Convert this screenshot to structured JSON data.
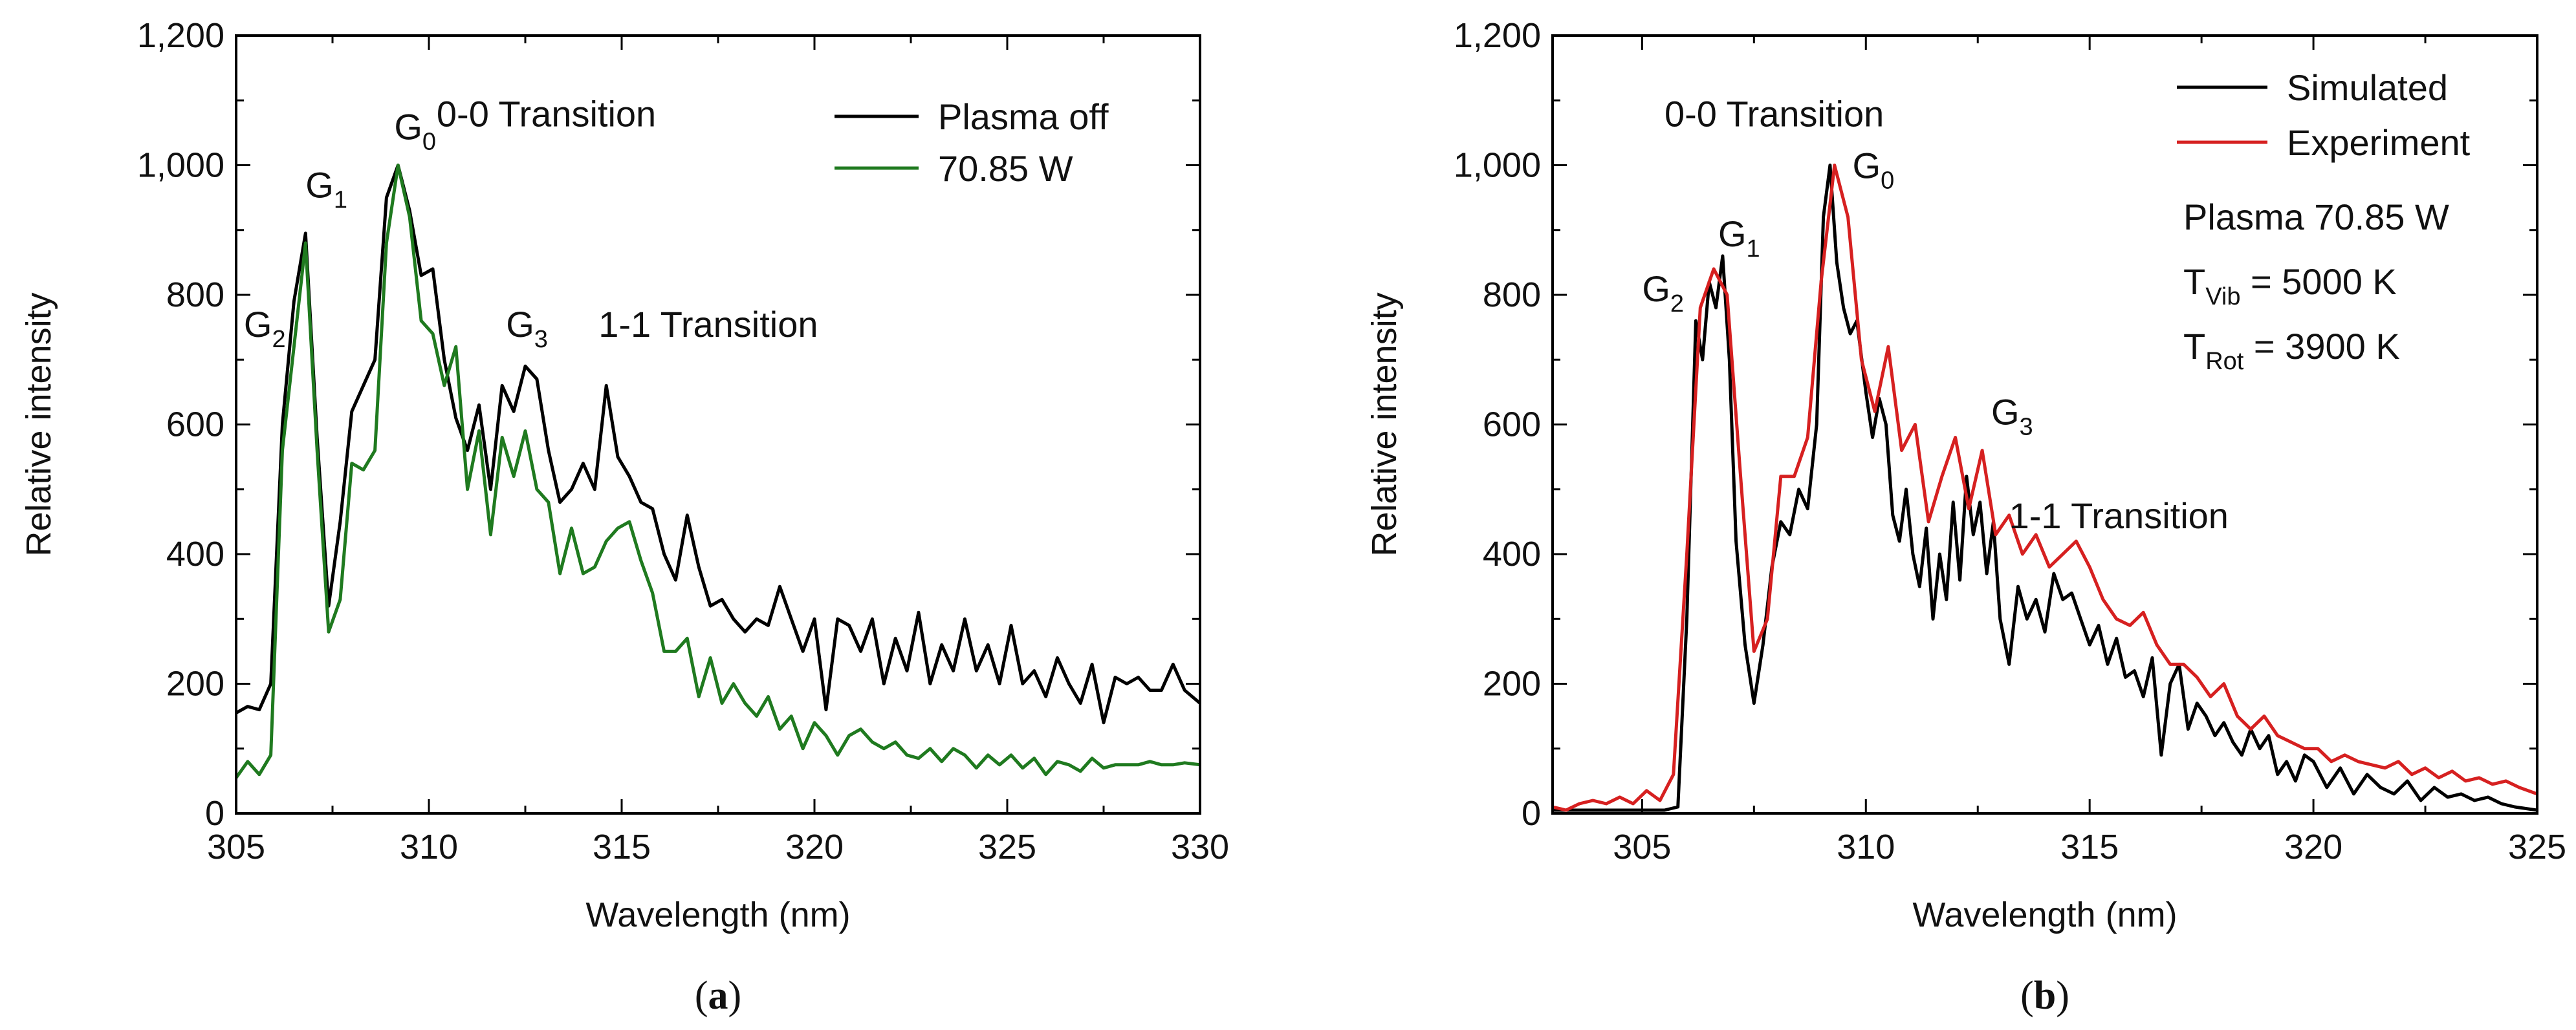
{
  "chart_data": [
    {
      "type": "line",
      "panel_label_open": "(",
      "panel_label_letter": "a",
      "panel_label_close": ")",
      "xlabel": "Wavelength (nm)",
      "ylabel": "Relative intensity",
      "xlim": [
        305,
        330
      ],
      "ylim": [
        0,
        1200
      ],
      "xticks": [
        305,
        310,
        315,
        320,
        325,
        330
      ],
      "yticks": [
        0,
        200,
        400,
        600,
        800,
        1000,
        1200
      ],
      "ytick_labels": [
        "0",
        "200",
        "400",
        "600",
        "800",
        "1,000",
        "1,200"
      ],
      "legend": "top-right",
      "series": [
        {
          "name": "Plasma off",
          "color": "#000000",
          "x": [
            305,
            305.3,
            305.6,
            305.9,
            306.2,
            306.5,
            306.8,
            307.1,
            307.4,
            307.7,
            308.0,
            308.3,
            308.6,
            308.9,
            309.2,
            309.5,
            309.8,
            310.1,
            310.4,
            310.7,
            311.0,
            311.3,
            311.6,
            311.9,
            312.2,
            312.5,
            312.8,
            313.1,
            313.4,
            313.7,
            314.0,
            314.3,
            314.6,
            314.9,
            315.2,
            315.5,
            315.8,
            316.1,
            316.4,
            316.7,
            317.0,
            317.3,
            317.6,
            317.9,
            318.2,
            318.5,
            318.8,
            319.1,
            319.4,
            319.7,
            320.0,
            320.3,
            320.6,
            320.9,
            321.2,
            321.5,
            321.8,
            322.1,
            322.4,
            322.7,
            323.0,
            323.3,
            323.6,
            323.9,
            324.2,
            324.5,
            324.8,
            325.1,
            325.4,
            325.7,
            326.0,
            326.3,
            326.6,
            326.9,
            327.2,
            327.5,
            327.8,
            328.1,
            328.4,
            328.7,
            329.0,
            329.3,
            329.6,
            330.0
          ],
          "y": [
            155,
            165,
            160,
            200,
            600,
            790,
            895,
            580,
            320,
            450,
            620,
            660,
            700,
            950,
            1000,
            930,
            830,
            840,
            700,
            610,
            560,
            630,
            500,
            660,
            620,
            690,
            670,
            560,
            480,
            500,
            540,
            500,
            660,
            550,
            520,
            480,
            470,
            400,
            360,
            460,
            380,
            320,
            330,
            300,
            280,
            300,
            290,
            350,
            300,
            250,
            300,
            160,
            300,
            290,
            250,
            300,
            200,
            270,
            220,
            310,
            200,
            260,
            220,
            300,
            220,
            260,
            200,
            290,
            200,
            220,
            180,
            240,
            200,
            170,
            230,
            140,
            210,
            200,
            210,
            190,
            190,
            230,
            190,
            170
          ]
        },
        {
          "name": "70.85 W",
          "color": "#1f7a1f",
          "x": [
            305,
            305.3,
            305.6,
            305.9,
            306.2,
            306.5,
            306.8,
            307.1,
            307.4,
            307.7,
            308.0,
            308.3,
            308.6,
            308.9,
            309.2,
            309.5,
            309.8,
            310.1,
            310.4,
            310.7,
            311.0,
            311.3,
            311.6,
            311.9,
            312.2,
            312.5,
            312.8,
            313.1,
            313.4,
            313.7,
            314.0,
            314.3,
            314.6,
            314.9,
            315.2,
            315.5,
            315.8,
            316.1,
            316.4,
            316.7,
            317.0,
            317.3,
            317.6,
            317.9,
            318.2,
            318.5,
            318.8,
            319.1,
            319.4,
            319.7,
            320.0,
            320.3,
            320.6,
            320.9,
            321.2,
            321.5,
            321.8,
            322.1,
            322.4,
            322.7,
            323.0,
            323.3,
            323.6,
            323.9,
            324.2,
            324.5,
            324.8,
            325.1,
            325.4,
            325.7,
            326.0,
            326.3,
            326.6,
            326.9,
            327.2,
            327.5,
            327.8,
            328.1,
            328.4,
            328.7,
            329.0,
            329.3,
            329.6,
            330.0
          ],
          "y": [
            55,
            80,
            60,
            90,
            560,
            720,
            880,
            560,
            280,
            330,
            540,
            530,
            560,
            880,
            1000,
            920,
            760,
            740,
            660,
            720,
            500,
            590,
            430,
            580,
            520,
            590,
            500,
            480,
            370,
            440,
            370,
            380,
            420,
            440,
            450,
            390,
            340,
            250,
            250,
            270,
            180,
            240,
            170,
            200,
            170,
            150,
            180,
            130,
            150,
            100,
            140,
            120,
            90,
            120,
            130,
            110,
            100,
            110,
            90,
            85,
            100,
            80,
            100,
            90,
            70,
            90,
            75,
            90,
            70,
            85,
            60,
            80,
            75,
            65,
            85,
            70,
            75,
            75,
            75,
            80,
            75,
            75,
            78,
            75
          ]
        }
      ],
      "annotations": [
        {
          "main": "G",
          "sub": "0",
          "x": 309.1,
          "y": 1040
        },
        {
          "main": "G",
          "sub": "1",
          "x": 306.8,
          "y": 950
        },
        {
          "main": "G",
          "sub": "2",
          "x": 305.2,
          "y": 735
        },
        {
          "main": "G",
          "sub": "3",
          "x": 312.0,
          "y": 735
        },
        {
          "main": "0-0 Transition",
          "sub": "",
          "x": 310.2,
          "y": 1060
        },
        {
          "main": "1-1 Transition",
          "sub": "",
          "x": 314.4,
          "y": 735
        }
      ]
    },
    {
      "type": "line",
      "panel_label_open": "(",
      "panel_label_letter": "b",
      "panel_label_close": ")",
      "xlabel": "Wavelength (nm)",
      "ylabel": "Relative intensity",
      "xlim": [
        303,
        325
      ],
      "ylim": [
        0,
        1200
      ],
      "xticks": [
        305,
        310,
        315,
        320,
        325
      ],
      "yticks": [
        0,
        200,
        400,
        600,
        800,
        1000,
        1200
      ],
      "ytick_labels": [
        "0",
        "200",
        "400",
        "600",
        "800",
        "1,000",
        "1,200"
      ],
      "legend": "top-right",
      "series": [
        {
          "name": "Simulated",
          "color": "#000000",
          "x": [
            303,
            303.5,
            304,
            304.5,
            305,
            305.5,
            305.8,
            306.0,
            306.2,
            306.35,
            306.5,
            306.65,
            306.8,
            306.95,
            307.1,
            307.3,
            307.5,
            307.7,
            307.9,
            308.1,
            308.3,
            308.5,
            308.7,
            308.9,
            309.05,
            309.2,
            309.35,
            309.5,
            309.65,
            309.8,
            310.0,
            310.15,
            310.3,
            310.45,
            310.6,
            310.75,
            310.9,
            311.05,
            311.2,
            311.35,
            311.5,
            311.65,
            311.8,
            311.95,
            312.1,
            312.25,
            312.4,
            312.55,
            312.7,
            312.85,
            313.0,
            313.2,
            313.4,
            313.6,
            313.8,
            314.0,
            314.2,
            314.4,
            314.6,
            314.8,
            315.0,
            315.2,
            315.4,
            315.6,
            315.8,
            316.0,
            316.2,
            316.4,
            316.6,
            316.8,
            317.0,
            317.2,
            317.4,
            317.6,
            317.8,
            318.0,
            318.2,
            318.4,
            318.6,
            318.8,
            319.0,
            319.2,
            319.4,
            319.6,
            319.8,
            320.0,
            320.3,
            320.6,
            320.9,
            321.2,
            321.5,
            321.8,
            322.1,
            322.4,
            322.7,
            323.0,
            323.3,
            323.6,
            323.9,
            324.2,
            324.5,
            325.0
          ],
          "y": [
            5,
            5,
            5,
            5,
            5,
            5,
            10,
            300,
            760,
            700,
            820,
            780,
            860,
            700,
            420,
            260,
            170,
            260,
            380,
            450,
            430,
            500,
            470,
            600,
            920,
            1000,
            850,
            780,
            740,
            760,
            650,
            580,
            640,
            600,
            460,
            420,
            500,
            400,
            350,
            440,
            300,
            400,
            330,
            480,
            360,
            520,
            430,
            480,
            370,
            450,
            300,
            230,
            350,
            300,
            330,
            280,
            370,
            330,
            340,
            300,
            260,
            290,
            230,
            270,
            210,
            220,
            180,
            240,
            90,
            200,
            230,
            130,
            170,
            150,
            120,
            140,
            110,
            90,
            130,
            100,
            120,
            60,
            80,
            50,
            90,
            80,
            40,
            70,
            30,
            60,
            40,
            30,
            50,
            20,
            40,
            25,
            30,
            20,
            25,
            15,
            10,
            5
          ]
        },
        {
          "name": "Experiment",
          "color": "#d62020",
          "x": [
            303,
            303.3,
            303.6,
            303.9,
            304.2,
            304.5,
            304.8,
            305.1,
            305.4,
            305.7,
            306.0,
            306.3,
            306.6,
            306.9,
            307.2,
            307.5,
            307.8,
            308.1,
            308.4,
            308.7,
            309.0,
            309.3,
            309.6,
            309.9,
            310.2,
            310.5,
            310.8,
            311.1,
            311.4,
            311.7,
            312.0,
            312.3,
            312.6,
            312.9,
            313.2,
            313.5,
            313.8,
            314.1,
            314.4,
            314.7,
            315.0,
            315.3,
            315.6,
            315.9,
            316.2,
            316.5,
            316.8,
            317.1,
            317.4,
            317.7,
            318.0,
            318.3,
            318.6,
            318.9,
            319.2,
            319.5,
            319.8,
            320.1,
            320.4,
            320.7,
            321.0,
            321.3,
            321.6,
            321.9,
            322.2,
            322.5,
            322.8,
            323.1,
            323.4,
            323.7,
            324.0,
            324.3,
            324.6,
            325.0
          ],
          "y": [
            10,
            5,
            15,
            20,
            15,
            25,
            15,
            35,
            20,
            60,
            400,
            780,
            840,
            800,
            520,
            250,
            300,
            520,
            520,
            580,
            820,
            1000,
            920,
            700,
            620,
            720,
            560,
            600,
            450,
            520,
            580,
            470,
            560,
            430,
            460,
            400,
            430,
            380,
            400,
            420,
            380,
            330,
            300,
            290,
            310,
            260,
            230,
            230,
            210,
            180,
            200,
            150,
            130,
            150,
            120,
            110,
            100,
            100,
            80,
            90,
            80,
            75,
            70,
            80,
            60,
            70,
            55,
            65,
            50,
            55,
            45,
            50,
            40,
            30
          ]
        }
      ],
      "annotations": [
        {
          "main": "G",
          "sub": "0",
          "x": 309.7,
          "y": 980
        },
        {
          "main": "G",
          "sub": "1",
          "x": 306.7,
          "y": 875
        },
        {
          "main": "G",
          "sub": "2",
          "x": 305.0,
          "y": 790
        },
        {
          "main": "G",
          "sub": "3",
          "x": 312.8,
          "y": 600
        },
        {
          "main": "0-0 Transition",
          "sub": "",
          "x": 305.5,
          "y": 1060
        },
        {
          "main": "1-1 Transition",
          "sub": "",
          "x": 313.2,
          "y": 440
        }
      ],
      "info_lines": [
        {
          "main": "Plasma 70.85 W",
          "sub": "",
          "tail": ""
        },
        {
          "main": "T",
          "sub": "Vib",
          "tail": " = 5000 K"
        },
        {
          "main": "T",
          "sub": "Rot",
          "tail": " = 3900 K"
        }
      ]
    }
  ]
}
